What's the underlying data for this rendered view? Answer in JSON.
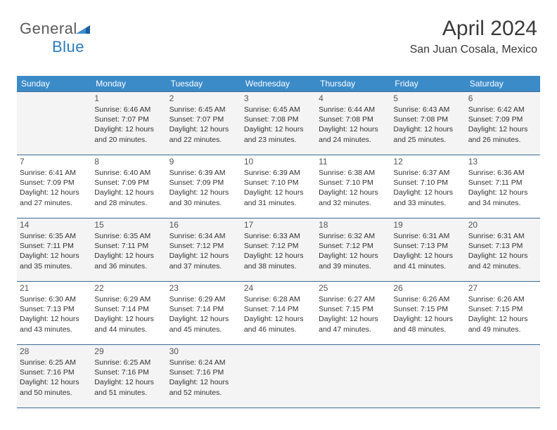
{
  "logo": {
    "text_gray": "General",
    "text_blue": "Blue"
  },
  "header": {
    "month": "April 2024",
    "location": "San Juan Cosala, Mexico"
  },
  "styling": {
    "page_bg": "#ffffff",
    "header_bg": "#3b8bc9",
    "header_text": "#ffffff",
    "cell_bg_shaded": "#f4f4f4",
    "cell_bg_white": "#ffffff",
    "border_color": "#3b6a95",
    "text_color": "#333333",
    "daynum_color": "#555555",
    "month_color": "#3a3a3a",
    "logo_gray": "#5a5a5a",
    "logo_blue": "#2a7bbf",
    "logo_tri_dark": "#1e5e9e",
    "logo_tri_light": "#3d8fd1",
    "font_family": "Arial, Helvetica, sans-serif",
    "month_fontsize": 30,
    "location_fontsize": 16,
    "header_fontsize": 12,
    "daynum_fontsize": 12,
    "details_fontsize": 10.5
  },
  "day_names": [
    "Sunday",
    "Monday",
    "Tuesday",
    "Wednesday",
    "Thursday",
    "Friday",
    "Saturday"
  ],
  "weeks": [
    {
      "shaded": true,
      "cells": [
        {
          "day": "",
          "sunrise": "",
          "sunset": "",
          "daylight": ""
        },
        {
          "day": "1",
          "sunrise": "Sunrise: 6:46 AM",
          "sunset": "Sunset: 7:07 PM",
          "daylight": "Daylight: 12 hours and 20 minutes."
        },
        {
          "day": "2",
          "sunrise": "Sunrise: 6:45 AM",
          "sunset": "Sunset: 7:07 PM",
          "daylight": "Daylight: 12 hours and 22 minutes."
        },
        {
          "day": "3",
          "sunrise": "Sunrise: 6:45 AM",
          "sunset": "Sunset: 7:08 PM",
          "daylight": "Daylight: 12 hours and 23 minutes."
        },
        {
          "day": "4",
          "sunrise": "Sunrise: 6:44 AM",
          "sunset": "Sunset: 7:08 PM",
          "daylight": "Daylight: 12 hours and 24 minutes."
        },
        {
          "day": "5",
          "sunrise": "Sunrise: 6:43 AM",
          "sunset": "Sunset: 7:08 PM",
          "daylight": "Daylight: 12 hours and 25 minutes."
        },
        {
          "day": "6",
          "sunrise": "Sunrise: 6:42 AM",
          "sunset": "Sunset: 7:09 PM",
          "daylight": "Daylight: 12 hours and 26 minutes."
        }
      ]
    },
    {
      "shaded": false,
      "cells": [
        {
          "day": "7",
          "sunrise": "Sunrise: 6:41 AM",
          "sunset": "Sunset: 7:09 PM",
          "daylight": "Daylight: 12 hours and 27 minutes."
        },
        {
          "day": "8",
          "sunrise": "Sunrise: 6:40 AM",
          "sunset": "Sunset: 7:09 PM",
          "daylight": "Daylight: 12 hours and 28 minutes."
        },
        {
          "day": "9",
          "sunrise": "Sunrise: 6:39 AM",
          "sunset": "Sunset: 7:09 PM",
          "daylight": "Daylight: 12 hours and 30 minutes."
        },
        {
          "day": "10",
          "sunrise": "Sunrise: 6:39 AM",
          "sunset": "Sunset: 7:10 PM",
          "daylight": "Daylight: 12 hours and 31 minutes."
        },
        {
          "day": "11",
          "sunrise": "Sunrise: 6:38 AM",
          "sunset": "Sunset: 7:10 PM",
          "daylight": "Daylight: 12 hours and 32 minutes."
        },
        {
          "day": "12",
          "sunrise": "Sunrise: 6:37 AM",
          "sunset": "Sunset: 7:10 PM",
          "daylight": "Daylight: 12 hours and 33 minutes."
        },
        {
          "day": "13",
          "sunrise": "Sunrise: 6:36 AM",
          "sunset": "Sunset: 7:11 PM",
          "daylight": "Daylight: 12 hours and 34 minutes."
        }
      ]
    },
    {
      "shaded": true,
      "cells": [
        {
          "day": "14",
          "sunrise": "Sunrise: 6:35 AM",
          "sunset": "Sunset: 7:11 PM",
          "daylight": "Daylight: 12 hours and 35 minutes."
        },
        {
          "day": "15",
          "sunrise": "Sunrise: 6:35 AM",
          "sunset": "Sunset: 7:11 PM",
          "daylight": "Daylight: 12 hours and 36 minutes."
        },
        {
          "day": "16",
          "sunrise": "Sunrise: 6:34 AM",
          "sunset": "Sunset: 7:12 PM",
          "daylight": "Daylight: 12 hours and 37 minutes."
        },
        {
          "day": "17",
          "sunrise": "Sunrise: 6:33 AM",
          "sunset": "Sunset: 7:12 PM",
          "daylight": "Daylight: 12 hours and 38 minutes."
        },
        {
          "day": "18",
          "sunrise": "Sunrise: 6:32 AM",
          "sunset": "Sunset: 7:12 PM",
          "daylight": "Daylight: 12 hours and 39 minutes."
        },
        {
          "day": "19",
          "sunrise": "Sunrise: 6:31 AM",
          "sunset": "Sunset: 7:13 PM",
          "daylight": "Daylight: 12 hours and 41 minutes."
        },
        {
          "day": "20",
          "sunrise": "Sunrise: 6:31 AM",
          "sunset": "Sunset: 7:13 PM",
          "daylight": "Daylight: 12 hours and 42 minutes."
        }
      ]
    },
    {
      "shaded": false,
      "cells": [
        {
          "day": "21",
          "sunrise": "Sunrise: 6:30 AM",
          "sunset": "Sunset: 7:13 PM",
          "daylight": "Daylight: 12 hours and 43 minutes."
        },
        {
          "day": "22",
          "sunrise": "Sunrise: 6:29 AM",
          "sunset": "Sunset: 7:14 PM",
          "daylight": "Daylight: 12 hours and 44 minutes."
        },
        {
          "day": "23",
          "sunrise": "Sunrise: 6:29 AM",
          "sunset": "Sunset: 7:14 PM",
          "daylight": "Daylight: 12 hours and 45 minutes."
        },
        {
          "day": "24",
          "sunrise": "Sunrise: 6:28 AM",
          "sunset": "Sunset: 7:14 PM",
          "daylight": "Daylight: 12 hours and 46 minutes."
        },
        {
          "day": "25",
          "sunrise": "Sunrise: 6:27 AM",
          "sunset": "Sunset: 7:15 PM",
          "daylight": "Daylight: 12 hours and 47 minutes."
        },
        {
          "day": "26",
          "sunrise": "Sunrise: 6:26 AM",
          "sunset": "Sunset: 7:15 PM",
          "daylight": "Daylight: 12 hours and 48 minutes."
        },
        {
          "day": "27",
          "sunrise": "Sunrise: 6:26 AM",
          "sunset": "Sunset: 7:15 PM",
          "daylight": "Daylight: 12 hours and 49 minutes."
        }
      ]
    },
    {
      "shaded": true,
      "cells": [
        {
          "day": "28",
          "sunrise": "Sunrise: 6:25 AM",
          "sunset": "Sunset: 7:16 PM",
          "daylight": "Daylight: 12 hours and 50 minutes."
        },
        {
          "day": "29",
          "sunrise": "Sunrise: 6:25 AM",
          "sunset": "Sunset: 7:16 PM",
          "daylight": "Daylight: 12 hours and 51 minutes."
        },
        {
          "day": "30",
          "sunrise": "Sunrise: 6:24 AM",
          "sunset": "Sunset: 7:16 PM",
          "daylight": "Daylight: 12 hours and 52 minutes."
        },
        {
          "day": "",
          "sunrise": "",
          "sunset": "",
          "daylight": ""
        },
        {
          "day": "",
          "sunrise": "",
          "sunset": "",
          "daylight": ""
        },
        {
          "day": "",
          "sunrise": "",
          "sunset": "",
          "daylight": ""
        },
        {
          "day": "",
          "sunrise": "",
          "sunset": "",
          "daylight": ""
        }
      ]
    }
  ]
}
